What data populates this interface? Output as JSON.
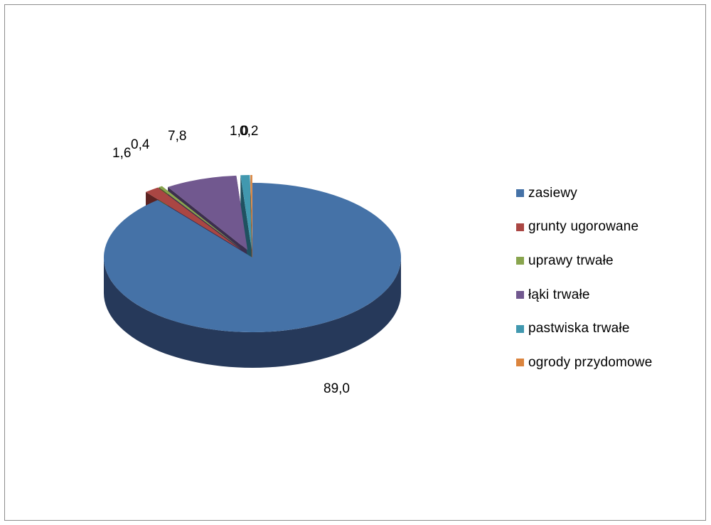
{
  "chart_data": {
    "type": "pie",
    "style": "3d-exploded",
    "categories": [
      "zasiewy",
      "grunty ugorowane",
      "uprawy trwałe",
      "łąki trwałe",
      "pastwiska trwałe",
      "ogrody przydomowe"
    ],
    "values": [
      89.0,
      1.6,
      0.4,
      7.8,
      1.0,
      0.2
    ],
    "data_labels": [
      "89,0",
      "1,6",
      "0,4",
      "7,8",
      "1,0",
      "0,2"
    ],
    "legend_position": "right",
    "colors": {
      "top": [
        "#4572A7",
        "#AA4643",
        "#89A54E",
        "#71588F",
        "#4198AF",
        "#DB843D"
      ],
      "side": [
        "#26395A",
        "#5C2221",
        "#4A5C28",
        "#3C2E4E",
        "#1F5160",
        "#7A4620"
      ]
    }
  }
}
